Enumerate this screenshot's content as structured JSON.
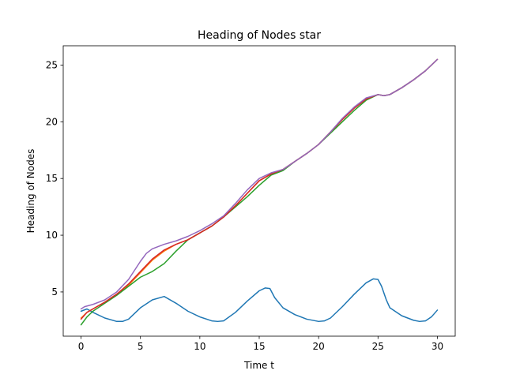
{
  "chart_data": {
    "type": "line",
    "title": "Heading of Nodes star",
    "xlabel": "Time t",
    "ylabel": "Heading of Nodes",
    "xlim": [
      -1.5,
      31.5
    ],
    "ylim": [
      1.1,
      26.7
    ],
    "xticks": [
      0,
      5,
      10,
      15,
      20,
      25,
      30
    ],
    "yticks": [
      5,
      10,
      15,
      20,
      25
    ],
    "grid": false,
    "legend": "none",
    "series": [
      {
        "color": "#1f77b4",
        "x": [
          0,
          0.5,
          1,
          2,
          3,
          3.5,
          4,
          5,
          6,
          7,
          8,
          9,
          10,
          11,
          11.5,
          12,
          13,
          14,
          15,
          15.5,
          15.9,
          16.3,
          17,
          18,
          19,
          20,
          20.5,
          21,
          22,
          23,
          24,
          24.6,
          25,
          25.3,
          25.7,
          26,
          27,
          28,
          28.5,
          29,
          29.5,
          30
        ],
        "y": [
          3.3,
          3.5,
          3.2,
          2.7,
          2.4,
          2.4,
          2.6,
          3.6,
          4.3,
          4.6,
          4.0,
          3.3,
          2.8,
          2.45,
          2.4,
          2.45,
          3.2,
          4.2,
          5.1,
          5.35,
          5.3,
          4.5,
          3.6,
          3.0,
          2.6,
          2.4,
          2.45,
          2.7,
          3.7,
          4.8,
          5.8,
          6.15,
          6.1,
          5.5,
          4.3,
          3.6,
          2.9,
          2.5,
          2.4,
          2.45,
          2.8,
          3.4
        ]
      },
      {
        "color": "#ff7f0e",
        "x": [
          0,
          0.5,
          1,
          2,
          3,
          4,
          5,
          6,
          7,
          8,
          9,
          10,
          11,
          12,
          13,
          14,
          15,
          16,
          17,
          18,
          19,
          20,
          21,
          22,
          23,
          24,
          25,
          25.5,
          26,
          27,
          28,
          29,
          30
        ],
        "y": [
          2.7,
          3.2,
          3.5,
          4.1,
          4.8,
          5.6,
          6.7,
          7.8,
          8.6,
          9.2,
          9.6,
          10.2,
          10.8,
          11.6,
          12.6,
          13.7,
          14.8,
          15.4,
          15.8,
          16.5,
          17.2,
          18.0,
          19.1,
          20.2,
          21.2,
          22.0,
          22.4,
          22.3,
          22.4,
          23.0,
          23.7,
          24.5,
          25.5
        ]
      },
      {
        "color": "#2ca02c",
        "x": [
          0,
          0.5,
          1,
          2,
          3,
          4,
          5,
          6,
          7,
          8,
          9,
          10,
          11,
          12,
          13,
          14,
          15,
          16,
          17,
          18,
          19,
          20,
          21,
          22,
          23,
          24,
          25,
          25.5,
          26,
          27,
          28,
          29,
          30
        ],
        "y": [
          2.1,
          2.8,
          3.3,
          4.0,
          4.7,
          5.5,
          6.3,
          6.8,
          7.5,
          8.6,
          9.6,
          10.2,
          10.8,
          11.6,
          12.5,
          13.4,
          14.4,
          15.3,
          15.7,
          16.5,
          17.2,
          18.0,
          19.0,
          20.0,
          21.0,
          21.9,
          22.4,
          22.3,
          22.4,
          23.0,
          23.7,
          24.5,
          25.5
        ]
      },
      {
        "color": "#d62728",
        "x": [
          0,
          0.5,
          1,
          2,
          3,
          4,
          5,
          6,
          7,
          8,
          9,
          10,
          11,
          12,
          13,
          14,
          15,
          16,
          17,
          18,
          19,
          20,
          21,
          22,
          23,
          24,
          25,
          25.5,
          26,
          27,
          28,
          29,
          30
        ],
        "y": [
          2.6,
          3.2,
          3.5,
          4.1,
          4.8,
          5.7,
          6.8,
          7.9,
          8.7,
          9.2,
          9.6,
          10.2,
          10.8,
          11.6,
          12.6,
          13.7,
          14.8,
          15.4,
          15.8,
          16.5,
          17.2,
          18.0,
          19.1,
          20.2,
          21.2,
          22.0,
          22.4,
          22.3,
          22.4,
          23.0,
          23.7,
          24.5,
          25.5
        ]
      },
      {
        "color": "#9467bd",
        "x": [
          0,
          0.3,
          1,
          2,
          3,
          4,
          5,
          5.5,
          6,
          7,
          8,
          9,
          10,
          11,
          12,
          13,
          14,
          15,
          16,
          17,
          18,
          19,
          20,
          21,
          22,
          23,
          24,
          25,
          25.5,
          26,
          27,
          28,
          29,
          30
        ],
        "y": [
          3.5,
          3.7,
          3.9,
          4.3,
          5.0,
          6.1,
          7.7,
          8.4,
          8.8,
          9.2,
          9.5,
          9.9,
          10.4,
          11.0,
          11.7,
          12.8,
          14.0,
          15.0,
          15.5,
          15.8,
          16.5,
          17.2,
          18.0,
          19.1,
          20.3,
          21.3,
          22.1,
          22.4,
          22.3,
          22.4,
          23.0,
          23.7,
          24.5,
          25.5
        ]
      }
    ]
  }
}
